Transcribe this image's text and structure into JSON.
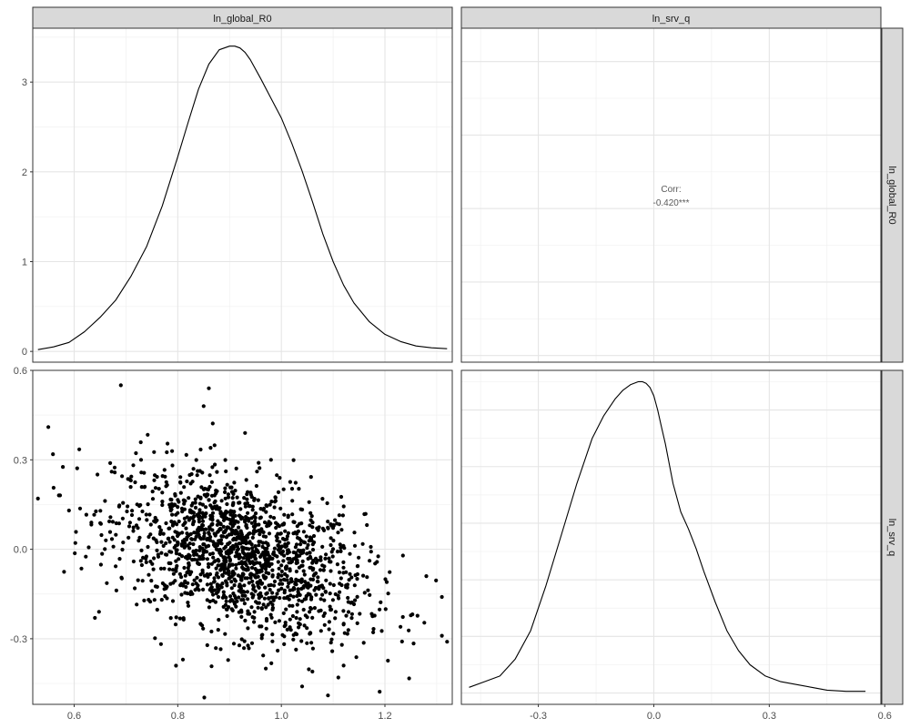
{
  "chart_data": {
    "type": "pairs",
    "variables": [
      "ln_global_R0",
      "ln_srv_q"
    ],
    "panels": [
      {
        "id": "density_ln_global_R0",
        "type": "line",
        "row": 0,
        "col": 0,
        "xlim": [
          0.52,
          1.33
        ],
        "ylim": [
          -0.12,
          3.6
        ],
        "x_ticks": [
          0.6,
          0.8,
          1.0,
          1.2
        ],
        "y_ticks": [
          0,
          1,
          2,
          3
        ],
        "y_tick_labels": [
          "0",
          "1",
          "2",
          "3"
        ],
        "x": [
          0.53,
          0.56,
          0.59,
          0.62,
          0.65,
          0.68,
          0.71,
          0.74,
          0.77,
          0.8,
          0.82,
          0.84,
          0.86,
          0.88,
          0.9,
          0.91,
          0.92,
          0.93,
          0.94,
          0.96,
          0.98,
          1.0,
          1.02,
          1.04,
          1.06,
          1.08,
          1.1,
          1.12,
          1.14,
          1.17,
          1.2,
          1.23,
          1.26,
          1.29,
          1.32
        ],
        "y": [
          0.02,
          0.05,
          0.1,
          0.22,
          0.38,
          0.57,
          0.84,
          1.17,
          1.62,
          2.17,
          2.55,
          2.92,
          3.2,
          3.36,
          3.4,
          3.4,
          3.38,
          3.33,
          3.25,
          3.04,
          2.82,
          2.6,
          2.32,
          2.01,
          1.67,
          1.31,
          1.0,
          0.74,
          0.54,
          0.33,
          0.19,
          0.11,
          0.06,
          0.04,
          0.03
        ]
      },
      {
        "id": "correlation",
        "type": "text",
        "row": 0,
        "col": 1,
        "xlim": [
          -0.5,
          0.59
        ],
        "x_ticks": [
          -0.3,
          0.0,
          0.3,
          0.6
        ],
        "label": "Corr:",
        "value": "-0.420***"
      },
      {
        "id": "scatter_R0_vs_srv_q",
        "type": "scatter",
        "row": 1,
        "col": 0,
        "xlim": [
          0.52,
          1.33
        ],
        "ylim": [
          -0.52,
          0.6
        ],
        "x_ticks": [
          0.6,
          0.8,
          1.0,
          1.2
        ],
        "x_tick_labels": [
          "0.6",
          "0.8",
          "1.0",
          "1.2"
        ],
        "y_ticks": [
          0.6,
          0.3,
          0.0,
          -0.3
        ],
        "y_tick_labels": [
          "0.6",
          "0.3",
          "0.0",
          "-0.3"
        ],
        "n_points": 1600,
        "correlation": -0.42,
        "x_center": 0.92,
        "x_sd": 0.12,
        "y_center": -0.02,
        "y_sd": 0.14,
        "visible_outliers": [
          [
            0.69,
            0.55
          ],
          [
            0.86,
            0.54
          ],
          [
            0.85,
            0.48
          ],
          [
            0.55,
            0.41
          ],
          [
            0.93,
            0.39
          ],
          [
            0.53,
            0.17
          ],
          [
            1.31,
            -0.29
          ],
          [
            1.32,
            -0.31
          ],
          [
            1.31,
            -0.16
          ],
          [
            1.28,
            -0.09
          ],
          [
            1.23,
            -0.26
          ],
          [
            1.06,
            -0.41
          ],
          [
            1.11,
            -0.43
          ],
          [
            1.09,
            -0.49
          ],
          [
            1.04,
            -0.46
          ],
          [
            0.81,
            -0.37
          ],
          [
            0.97,
            -0.4
          ],
          [
            0.59,
            0.13
          ],
          [
            0.64,
            -0.23
          ],
          [
            0.98,
            0.3
          ]
        ]
      },
      {
        "id": "density_ln_srv_q",
        "type": "line",
        "row": 1,
        "col": 1,
        "xlim": [
          -0.5,
          0.59
        ],
        "ylim": [
          -0.02,
          0.57
        ],
        "x_ticks": [
          -0.3,
          0.0,
          0.3,
          0.6
        ],
        "x_tick_labels": [
          "-0.3",
          "0.0",
          "0.3",
          "0.6"
        ],
        "x": [
          -0.48,
          -0.44,
          -0.4,
          -0.36,
          -0.32,
          -0.28,
          -0.24,
          -0.2,
          -0.16,
          -0.13,
          -0.1,
          -0.08,
          -0.06,
          -0.04,
          -0.03,
          -0.02,
          -0.01,
          0.0,
          0.01,
          0.02,
          0.03,
          0.05,
          0.07,
          0.09,
          0.11,
          0.13,
          0.16,
          0.19,
          0.22,
          0.25,
          0.29,
          0.33,
          0.37,
          0.41,
          0.45,
          0.5,
          0.55
        ],
        "y": [
          0.01,
          0.02,
          0.03,
          0.06,
          0.11,
          0.19,
          0.28,
          0.37,
          0.45,
          0.49,
          0.52,
          0.535,
          0.545,
          0.55,
          0.55,
          0.547,
          0.54,
          0.525,
          0.5,
          0.47,
          0.44,
          0.37,
          0.32,
          0.29,
          0.255,
          0.215,
          0.16,
          0.11,
          0.075,
          0.05,
          0.03,
          0.02,
          0.015,
          0.01,
          0.005,
          0.003,
          0.003
        ]
      }
    ],
    "theme": {
      "grid": true,
      "strip_fill": "#d9d9d9",
      "panel_border": "#333333",
      "line_color": "#000000",
      "point_color": "#000000"
    }
  }
}
